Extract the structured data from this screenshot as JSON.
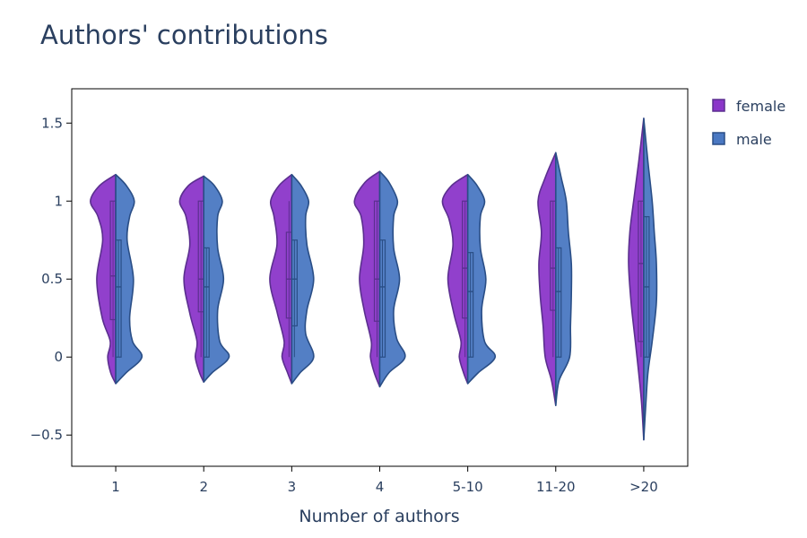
{
  "chart_data": {
    "type": "violin",
    "title": "Authors' contributions",
    "xlabel": "Number of authors",
    "ylabel": "",
    "categories": [
      "1",
      "2",
      "3",
      "4",
      "5-10",
      "11-20",
      ">20"
    ],
    "ylim": [
      -0.7,
      1.72
    ],
    "yticks": [
      -0.5,
      0,
      0.5,
      1,
      1.5
    ],
    "ytick_labels": [
      "−0.5",
      "0",
      "0.5",
      "1",
      "1.5"
    ],
    "grid": false,
    "legend_position": "top-right",
    "series": [
      {
        "name": "female",
        "side": "negative",
        "color": "#8b36c9",
        "line_color": "#5b2f8f",
        "groups": [
          {
            "category": "1",
            "span": [
              -0.17,
              1.17
            ],
            "q1": 0.24,
            "median": 0.52,
            "q3": 1.0,
            "lower": 0.0,
            "upper": 1.0,
            "profile": [
              [
                -0.17,
                0
              ],
              [
                -0.1,
                0.12
              ],
              [
                0.0,
                0.19
              ],
              [
                0.1,
                0.13
              ],
              [
                0.25,
                0.32
              ],
              [
                0.5,
                0.45
              ],
              [
                0.75,
                0.31
              ],
              [
                0.9,
                0.42
              ],
              [
                1.0,
                0.6
              ],
              [
                1.1,
                0.38
              ],
              [
                1.17,
                0
              ]
            ]
          },
          {
            "category": "2",
            "span": [
              -0.16,
              1.16
            ],
            "q1": 0.29,
            "median": 0.5,
            "q3": 1.0,
            "lower": 0.0,
            "upper": 1.0,
            "profile": [
              [
                -0.16,
                0
              ],
              [
                -0.1,
                0.1
              ],
              [
                0.0,
                0.2
              ],
              [
                0.1,
                0.16
              ],
              [
                0.28,
                0.33
              ],
              [
                0.5,
                0.47
              ],
              [
                0.72,
                0.33
              ],
              [
                0.9,
                0.42
              ],
              [
                1.0,
                0.57
              ],
              [
                1.1,
                0.36
              ],
              [
                1.16,
                0
              ]
            ]
          },
          {
            "category": "3",
            "span": [
              -0.17,
              1.17
            ],
            "q1": 0.25,
            "median": 0.5,
            "q3": 0.8,
            "lower": 0.0,
            "upper": 1.0,
            "profile": [
              [
                -0.17,
                0
              ],
              [
                -0.1,
                0.1
              ],
              [
                0.0,
                0.23
              ],
              [
                0.1,
                0.18
              ],
              [
                0.28,
                0.34
              ],
              [
                0.5,
                0.52
              ],
              [
                0.72,
                0.35
              ],
              [
                0.9,
                0.42
              ],
              [
                1.0,
                0.5
              ],
              [
                1.1,
                0.3
              ],
              [
                1.17,
                0
              ]
            ]
          },
          {
            "category": "4",
            "span": [
              -0.19,
              1.19
            ],
            "q1": 0.23,
            "median": 0.5,
            "q3": 1.0,
            "lower": 0.0,
            "upper": 1.0,
            "profile": [
              [
                -0.19,
                0
              ],
              [
                -0.1,
                0.13
              ],
              [
                0.0,
                0.22
              ],
              [
                0.1,
                0.2
              ],
              [
                0.3,
                0.37
              ],
              [
                0.5,
                0.48
              ],
              [
                0.72,
                0.38
              ],
              [
                0.9,
                0.44
              ],
              [
                1.0,
                0.6
              ],
              [
                1.12,
                0.35
              ],
              [
                1.19,
                0
              ]
            ]
          },
          {
            "category": "5-10",
            "span": [
              -0.17,
              1.17
            ],
            "q1": 0.25,
            "median": 0.57,
            "q3": 1.0,
            "lower": 0.0,
            "upper": 1.0,
            "profile": [
              [
                -0.17,
                0
              ],
              [
                -0.1,
                0.1
              ],
              [
                0.0,
                0.2
              ],
              [
                0.1,
                0.16
              ],
              [
                0.28,
                0.33
              ],
              [
                0.5,
                0.47
              ],
              [
                0.72,
                0.35
              ],
              [
                0.88,
                0.44
              ],
              [
                1.0,
                0.6
              ],
              [
                1.1,
                0.38
              ],
              [
                1.17,
                0
              ]
            ]
          },
          {
            "category": "11-20",
            "span": [
              -0.31,
              1.31
            ],
            "q1": 0.3,
            "median": 0.57,
            "q3": 1.0,
            "lower": 0.0,
            "upper": 1.0,
            "profile": [
              [
                -0.31,
                0
              ],
              [
                -0.15,
                0.1
              ],
              [
                0.0,
                0.25
              ],
              [
                0.2,
                0.3
              ],
              [
                0.4,
                0.37
              ],
              [
                0.6,
                0.4
              ],
              [
                0.8,
                0.34
              ],
              [
                1.0,
                0.42
              ],
              [
                1.15,
                0.25
              ],
              [
                1.31,
                0
              ]
            ]
          },
          {
            "category": ">20",
            "span": [
              -0.53,
              1.53
            ],
            "q1": 0.1,
            "median": 0.6,
            "q3": 1.0,
            "lower": 0.0,
            "upper": 1.0,
            "profile": [
              [
                -0.53,
                0
              ],
              [
                -0.3,
                0.05
              ],
              [
                -0.1,
                0.12
              ],
              [
                0.1,
                0.2
              ],
              [
                0.35,
                0.3
              ],
              [
                0.6,
                0.36
              ],
              [
                0.8,
                0.33
              ],
              [
                1.0,
                0.24
              ],
              [
                1.25,
                0.12
              ],
              [
                1.53,
                0
              ]
            ]
          }
        ]
      },
      {
        "name": "male",
        "side": "positive",
        "color": "#4a78c2",
        "line_color": "#2a4e86",
        "groups": [
          {
            "category": "1",
            "span": [
              -0.17,
              1.17
            ],
            "q1": 0.0,
            "median": 0.45,
            "q3": 0.75,
            "lower": 0.0,
            "upper": 0.75,
            "profile": [
              [
                -0.17,
                0
              ],
              [
                -0.1,
                0.25
              ],
              [
                0.0,
                0.62
              ],
              [
                0.1,
                0.4
              ],
              [
                0.25,
                0.33
              ],
              [
                0.5,
                0.42
              ],
              [
                0.75,
                0.27
              ],
              [
                0.9,
                0.33
              ],
              [
                1.0,
                0.44
              ],
              [
                1.1,
                0.25
              ],
              [
                1.17,
                0
              ]
            ]
          },
          {
            "category": "2",
            "span": [
              -0.16,
              1.16
            ],
            "q1": 0.0,
            "median": 0.45,
            "q3": 0.7,
            "lower": 0.0,
            "upper": 0.7,
            "profile": [
              [
                -0.16,
                0
              ],
              [
                -0.1,
                0.2
              ],
              [
                0.0,
                0.6
              ],
              [
                0.1,
                0.38
              ],
              [
                0.3,
                0.33
              ],
              [
                0.5,
                0.47
              ],
              [
                0.7,
                0.33
              ],
              [
                0.9,
                0.33
              ],
              [
                1.0,
                0.44
              ],
              [
                1.1,
                0.25
              ],
              [
                1.16,
                0
              ]
            ]
          },
          {
            "category": "3",
            "span": [
              -0.17,
              1.17
            ],
            "q1": 0.2,
            "median": 0.5,
            "q3": 0.75,
            "lower": 0.0,
            "upper": 0.75,
            "profile": [
              [
                -0.17,
                0
              ],
              [
                -0.1,
                0.2
              ],
              [
                0.0,
                0.52
              ],
              [
                0.15,
                0.33
              ],
              [
                0.3,
                0.36
              ],
              [
                0.5,
                0.52
              ],
              [
                0.72,
                0.36
              ],
              [
                0.9,
                0.33
              ],
              [
                1.0,
                0.4
              ],
              [
                1.1,
                0.22
              ],
              [
                1.17,
                0
              ]
            ]
          },
          {
            "category": "4",
            "span": [
              -0.19,
              1.19
            ],
            "q1": 0.0,
            "median": 0.45,
            "q3": 0.75,
            "lower": 0.0,
            "upper": 0.75,
            "profile": [
              [
                -0.19,
                0
              ],
              [
                -0.1,
                0.22
              ],
              [
                0.0,
                0.6
              ],
              [
                0.12,
                0.4
              ],
              [
                0.3,
                0.33
              ],
              [
                0.5,
                0.47
              ],
              [
                0.7,
                0.33
              ],
              [
                0.9,
                0.33
              ],
              [
                1.0,
                0.42
              ],
              [
                1.12,
                0.22
              ],
              [
                1.19,
                0
              ]
            ]
          },
          {
            "category": "5-10",
            "span": [
              -0.17,
              1.17
            ],
            "q1": 0.0,
            "median": 0.42,
            "q3": 0.67,
            "lower": 0.0,
            "upper": 0.67,
            "profile": [
              [
                -0.17,
                0
              ],
              [
                -0.1,
                0.25
              ],
              [
                0.0,
                0.65
              ],
              [
                0.1,
                0.4
              ],
              [
                0.3,
                0.33
              ],
              [
                0.5,
                0.43
              ],
              [
                0.7,
                0.3
              ],
              [
                0.9,
                0.3
              ],
              [
                1.0,
                0.4
              ],
              [
                1.1,
                0.22
              ],
              [
                1.17,
                0
              ]
            ]
          },
          {
            "category": "11-20",
            "span": [
              -0.31,
              1.31
            ],
            "q1": 0.0,
            "median": 0.42,
            "q3": 0.7,
            "lower": 0.0,
            "upper": 0.7,
            "profile": [
              [
                -0.31,
                0
              ],
              [
                -0.15,
                0.08
              ],
              [
                0.0,
                0.33
              ],
              [
                0.2,
                0.35
              ],
              [
                0.4,
                0.37
              ],
              [
                0.6,
                0.37
              ],
              [
                0.8,
                0.3
              ],
              [
                1.0,
                0.25
              ],
              [
                1.15,
                0.13
              ],
              [
                1.31,
                0
              ]
            ]
          },
          {
            "category": ">20",
            "span": [
              -0.53,
              1.53
            ],
            "q1": 0.0,
            "median": 0.45,
            "q3": 0.9,
            "lower": 0.0,
            "upper": 0.9,
            "profile": [
              [
                -0.53,
                0
              ],
              [
                -0.3,
                0.05
              ],
              [
                -0.1,
                0.1
              ],
              [
                0.1,
                0.2
              ],
              [
                0.35,
                0.3
              ],
              [
                0.6,
                0.3
              ],
              [
                0.8,
                0.25
              ],
              [
                1.0,
                0.2
              ],
              [
                1.25,
                0.1
              ],
              [
                1.53,
                0
              ]
            ]
          }
        ]
      }
    ]
  }
}
